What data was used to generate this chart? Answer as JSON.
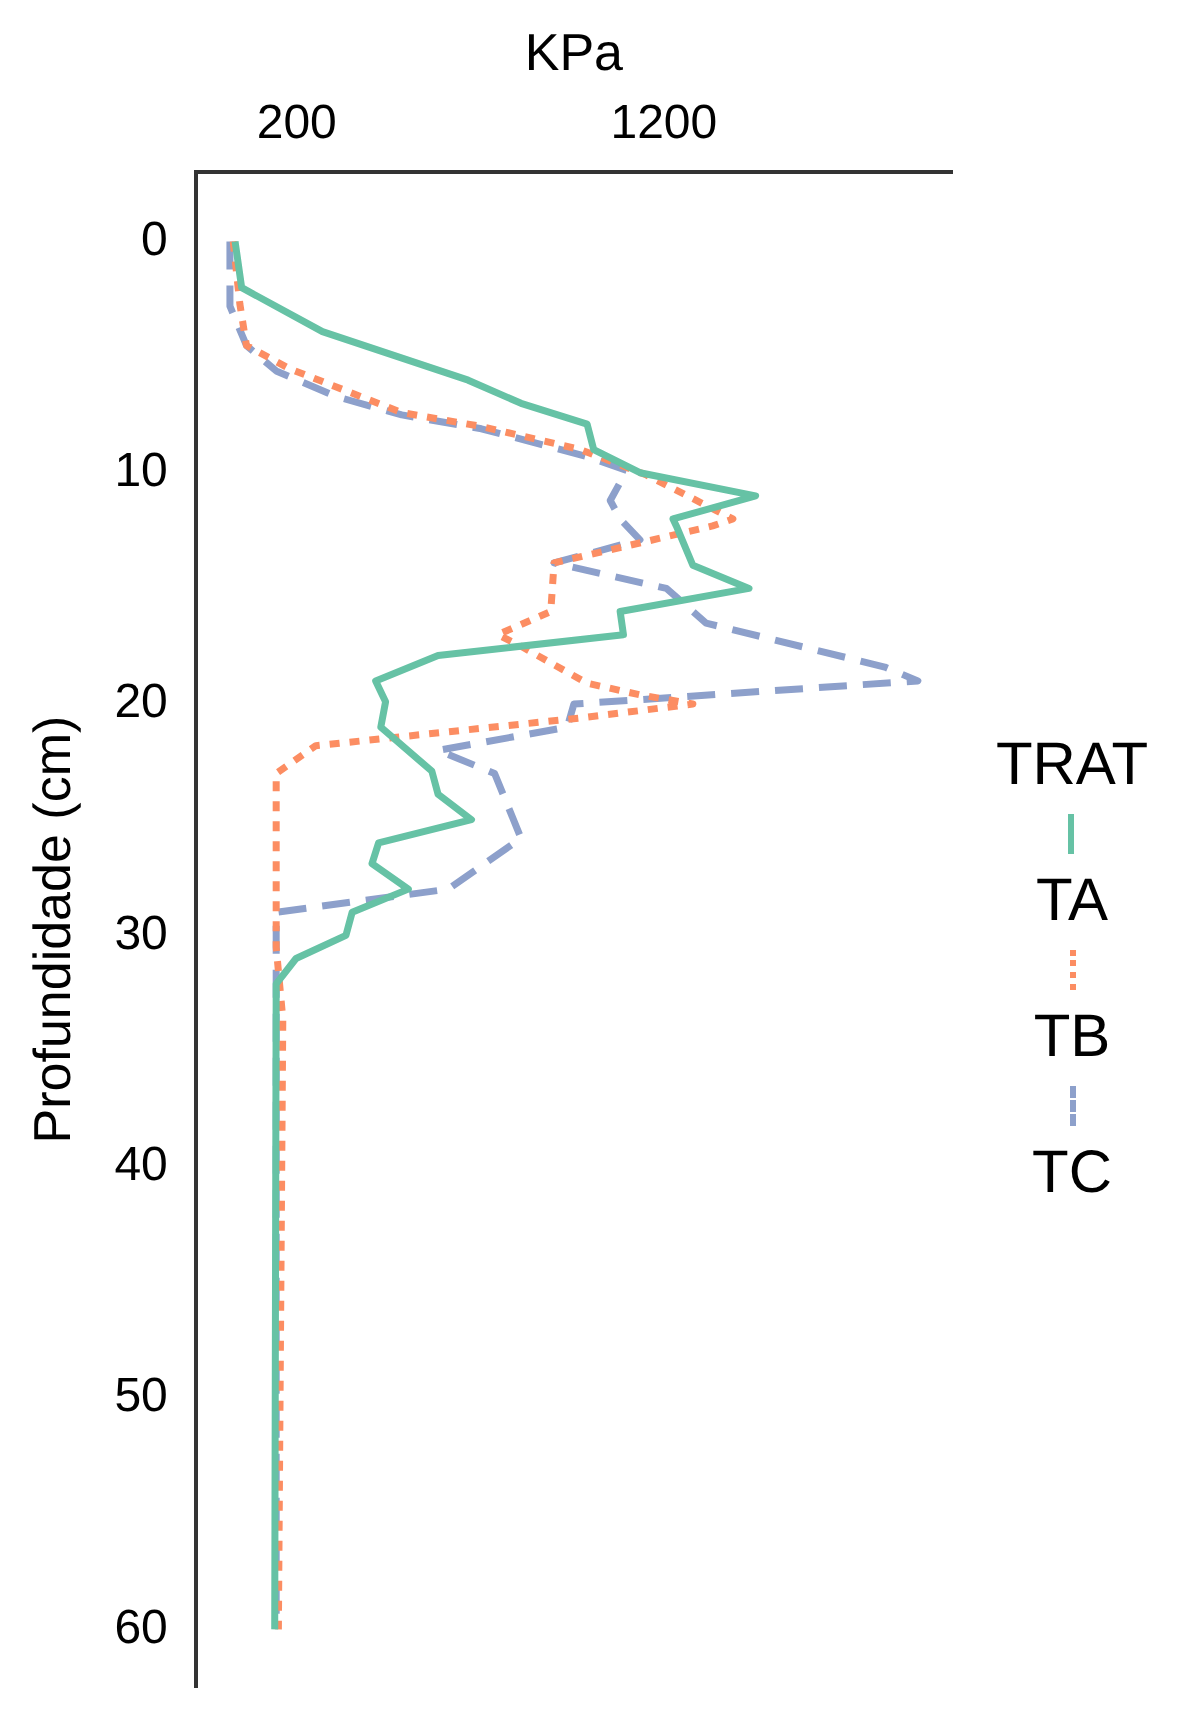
{
  "chart_data": {
    "type": "line",
    "xlabel": "KPa",
    "ylabel": "Profundidade (cm)",
    "legend_title": "TRAT",
    "legend": "right",
    "grid": false,
    "marker": "none",
    "xlim": [
      -75,
      1985
    ],
    "xticks": [
      200,
      1200
    ],
    "ylim": [
      62.5,
      -3
    ],
    "yticks": [
      0,
      10,
      20,
      30,
      40,
      50,
      60
    ],
    "series": [
      {
        "name": "TA",
        "color": "#66c2a5",
        "line_style": "solid",
        "x": [
          32,
          50,
          270,
          667,
          811,
          991,
          1009,
          1135,
          1450,
          1225,
          1234,
          1279,
          1432,
          1081,
          1090,
          585,
          415,
          442,
          429,
          568,
          585,
          676,
          423,
          405,
          504,
          351,
          334,
          198,
          144,
          140
        ],
        "values": [
          0,
          2,
          3.9,
          6,
          7,
          7.9,
          9,
          10,
          11,
          12,
          12.3,
          14,
          15,
          16,
          17,
          17.9,
          19,
          19.9,
          21,
          22.9,
          23.9,
          25,
          26,
          26.9,
          28,
          29,
          30,
          31,
          32.1,
          60
        ]
      },
      {
        "name": "TB",
        "color": "#fc8d62",
        "line_style": "dotted",
        "x": [
          27,
          45,
          63,
          180,
          486,
          703,
          973,
          1153,
          1388,
          1333,
          901,
          892,
          748,
          811,
          991,
          1135,
          1279,
          973,
          252,
          144,
          144,
          162,
          150
        ],
        "values": [
          0,
          2.7,
          4.5,
          5.5,
          7.4,
          8,
          9,
          10.1,
          12,
          12.3,
          13.9,
          16,
          17,
          17.5,
          19.1,
          19.6,
          20,
          20.6,
          21.8,
          23,
          30.5,
          33.6,
          60
        ]
      },
      {
        "name": "TC",
        "color": "#8da0cb",
        "line_style": "dashed",
        "x": [
          18,
          18,
          63,
          144,
          306,
          486,
          703,
          991,
          1099,
          1054,
          1081,
          1135,
          901,
          1207,
          1315,
          1802,
          1892,
          955,
          937,
          585,
          739,
          811,
          613,
          144,
          144
        ],
        "values": [
          0,
          2.8,
          4.5,
          5.6,
          6.7,
          7.5,
          8.1,
          9.3,
          9.9,
          11.2,
          12,
          12.9,
          13.9,
          15,
          16.5,
          18.4,
          19,
          20,
          21,
          22,
          23,
          25.8,
          28,
          29,
          60
        ]
      }
    ]
  }
}
